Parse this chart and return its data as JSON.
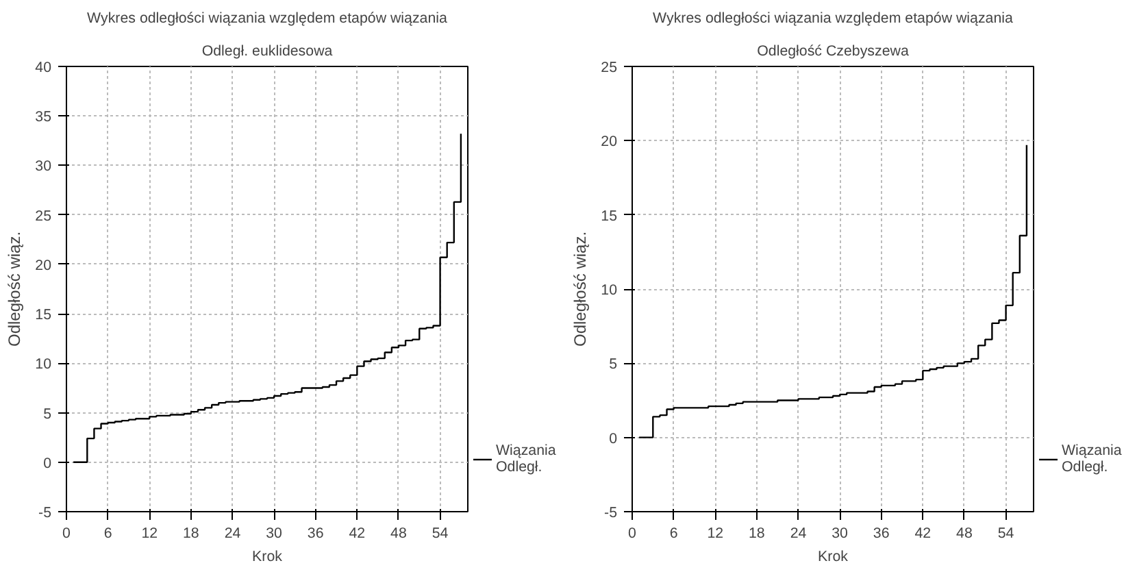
{
  "chart_data": [
    {
      "type": "step",
      "title": "Wykres odległości wiązania względem etapów wiązania",
      "subtitle": "Odległ. euklidesowa",
      "xlabel": "Krok",
      "ylabel": "Odległość wiąz.",
      "x": [
        1,
        2,
        3,
        4,
        5,
        6,
        7,
        8,
        9,
        10,
        11,
        12,
        13,
        14,
        15,
        16,
        17,
        18,
        19,
        20,
        21,
        22,
        23,
        24,
        25,
        26,
        27,
        28,
        29,
        30,
        31,
        32,
        33,
        34,
        35,
        36,
        37,
        38,
        39,
        40,
        41,
        42,
        43,
        44,
        45,
        46,
        47,
        48,
        49,
        50,
        51,
        52,
        53,
        54,
        55,
        56,
        57
      ],
      "series": [
        {
          "name": "Wiązania\nOdległ.",
          "color": "#000000",
          "values": [
            0,
            0,
            2.4,
            3.4,
            3.9,
            4.0,
            4.1,
            4.2,
            4.3,
            4.4,
            4.4,
            4.6,
            4.7,
            4.7,
            4.8,
            4.8,
            4.9,
            5.1,
            5.3,
            5.5,
            5.8,
            6.0,
            6.1,
            6.1,
            6.2,
            6.2,
            6.3,
            6.4,
            6.5,
            6.7,
            6.9,
            7.0,
            7.1,
            7.5,
            7.5,
            7.5,
            7.6,
            7.8,
            8.2,
            8.5,
            8.8,
            9.7,
            10.2,
            10.4,
            10.5,
            11.1,
            11.6,
            11.8,
            12.3,
            12.4,
            13.5,
            13.6,
            13.8,
            20.7,
            22.2,
            26.3,
            33.2
          ]
        }
      ],
      "xlim": [
        0,
        58
      ],
      "xticks": [
        0,
        6,
        12,
        18,
        24,
        30,
        36,
        42,
        48,
        54
      ],
      "ylim": [
        -5,
        40
      ],
      "yticks": [
        -5,
        0,
        5,
        10,
        15,
        20,
        25,
        30,
        35,
        40
      ],
      "grid": true,
      "legend": "bottom right",
      "line_style": "solid"
    },
    {
      "type": "step",
      "title": "Wykres odległości wiązania względem etapów wiązania",
      "subtitle": "Odległość Czebyszewa",
      "xlabel": "Krok",
      "ylabel": "Odległość wiąz.",
      "x": [
        1,
        2,
        3,
        4,
        5,
        6,
        7,
        8,
        9,
        10,
        11,
        12,
        13,
        14,
        15,
        16,
        17,
        18,
        19,
        20,
        21,
        22,
        23,
        24,
        25,
        26,
        27,
        28,
        29,
        30,
        31,
        32,
        33,
        34,
        35,
        36,
        37,
        38,
        39,
        40,
        41,
        42,
        43,
        44,
        45,
        46,
        47,
        48,
        49,
        50,
        51,
        52,
        53,
        54,
        55,
        56,
        57
      ],
      "series": [
        {
          "name": "Wiązania\nOdległ.",
          "color": "#000000",
          "values": [
            0,
            0,
            1.4,
            1.5,
            1.9,
            2.0,
            2.0,
            2.0,
            2.0,
            2.0,
            2.1,
            2.1,
            2.1,
            2.2,
            2.3,
            2.4,
            2.4,
            2.4,
            2.4,
            2.4,
            2.5,
            2.5,
            2.5,
            2.6,
            2.6,
            2.6,
            2.7,
            2.7,
            2.8,
            2.9,
            3.0,
            3.0,
            3.0,
            3.1,
            3.4,
            3.5,
            3.5,
            3.6,
            3.8,
            3.8,
            3.9,
            4.5,
            4.6,
            4.7,
            4.8,
            4.8,
            5.0,
            5.1,
            5.3,
            6.2,
            6.6,
            7.7,
            7.9,
            8.9,
            11.1,
            13.6,
            19.7
          ]
        }
      ],
      "xlim": [
        0,
        58
      ],
      "xticks": [
        0,
        6,
        12,
        18,
        24,
        30,
        36,
        42,
        48,
        54
      ],
      "ylim": [
        -5,
        25
      ],
      "yticks": [
        -5,
        0,
        5,
        10,
        15,
        20,
        25
      ],
      "grid": true,
      "legend": "bottom right",
      "line_style": "solid"
    }
  ]
}
